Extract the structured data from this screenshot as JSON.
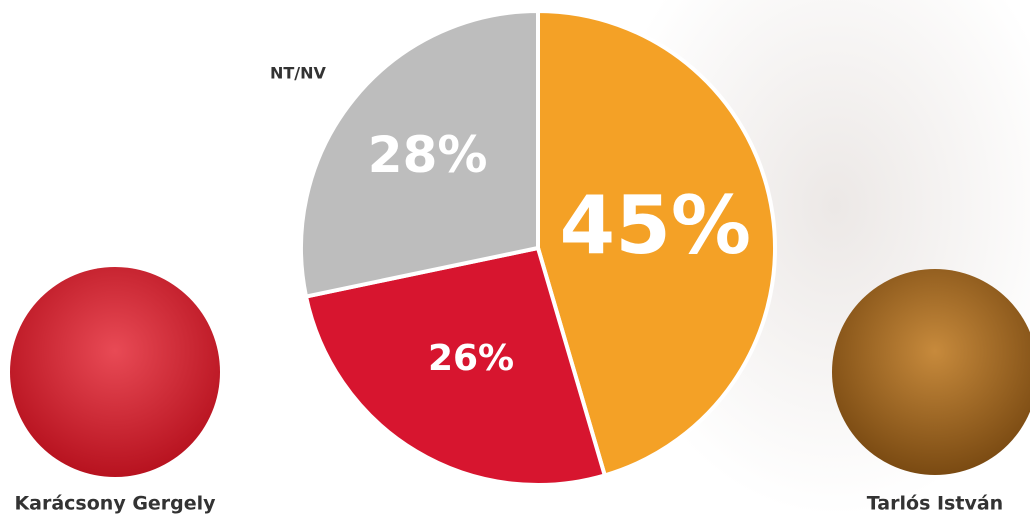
{
  "chart_data": {
    "type": "pie",
    "categories": [
      "Tarlós István",
      "Karácsony Gergely",
      "NT/NV"
    ],
    "values": [
      45,
      26,
      28
    ],
    "value_labels": [
      "45%",
      "26%",
      "28%"
    ],
    "colors": [
      "#f4a126",
      "#d7152f",
      "#bdbdbd"
    ]
  }
}
